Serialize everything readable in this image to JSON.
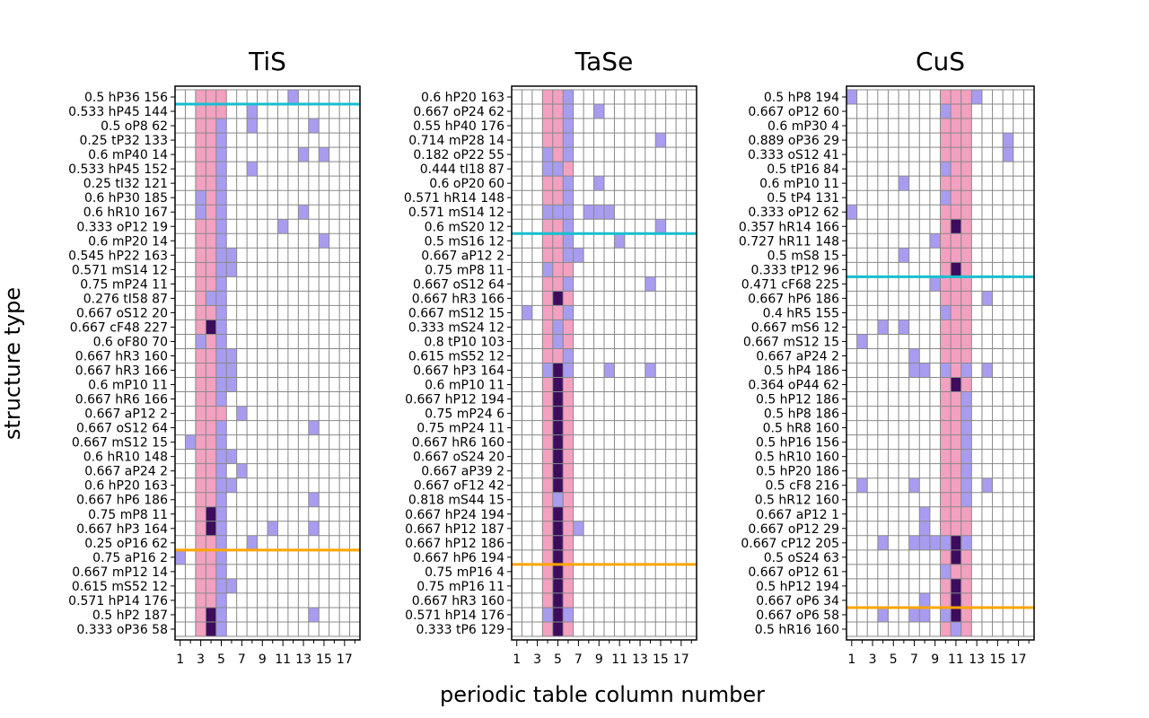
{
  "figure": {
    "xlabel": "periodic table column number",
    "ylabel": "structure type",
    "colors": {
      "background": "#ffffff",
      "highlight_column": "#f4a0c0",
      "single": "#a89cf0",
      "double": "#3d0c5e",
      "grid": "#888888",
      "cyan_line": "#17becf",
      "orange_line": "#ffa500"
    }
  },
  "chart_data": [
    {
      "type": "heatmap",
      "title": "TiS",
      "x_columns": 18,
      "x_tick_labels": [
        "1",
        "3",
        "5",
        "7",
        "9",
        "11",
        "13",
        "15",
        "17"
      ],
      "highlight_columns": [
        3,
        4,
        5
      ],
      "rows": [
        "0.5 hP36 156",
        "0.533 hP45 144",
        "0.5 oP8 62",
        "0.25 tP32 133",
        "0.6 mP40 14",
        "0.533 hP45 152",
        "0.25 tI32 121",
        "0.6 hP30 185",
        "0.6 hR10 167",
        "0.333 oP12 19",
        "0.6 mP20 14",
        "0.545 hP22 163",
        "0.571 mS14 12",
        "0.75 mP24 11",
        "0.276 tI58 87",
        "0.667 oS12 20",
        "0.667 cF48 227",
        "0.6 oF80 70",
        "0.667 hR3 160",
        "0.667 hR3 166",
        "0.6 mP10 11",
        "0.667 hR6 166",
        "0.667 aP12 2",
        "0.667 oS12 64",
        "0.667 mS12 15",
        "0.6 hR10 148",
        "0.667 aP24 2",
        "0.6 hP20 163",
        "0.667 hP6 186",
        "0.75 mP8 11",
        "0.667 hP3 164",
        "0.25 oP16 62",
        "0.75 aP16 2",
        "0.667 mP12 14",
        "0.615 mS52 12",
        "0.571 hP14 176",
        "0.5 hP2 187",
        "0.333 oP36 58"
      ],
      "cells": [
        [
          1,
          12,
          1
        ],
        [
          2,
          8,
          1
        ],
        [
          3,
          5,
          1
        ],
        [
          3,
          8,
          1
        ],
        [
          3,
          14,
          1
        ],
        [
          4,
          5,
          1
        ],
        [
          5,
          5,
          1
        ],
        [
          5,
          13,
          1
        ],
        [
          5,
          15,
          1
        ],
        [
          6,
          5,
          1
        ],
        [
          6,
          8,
          1
        ],
        [
          7,
          5,
          1
        ],
        [
          8,
          3,
          1
        ],
        [
          8,
          5,
          1
        ],
        [
          9,
          3,
          1
        ],
        [
          9,
          5,
          1
        ],
        [
          9,
          13,
          1
        ],
        [
          10,
          5,
          1
        ],
        [
          10,
          11,
          1
        ],
        [
          11,
          5,
          1
        ],
        [
          11,
          15,
          1
        ],
        [
          12,
          5,
          1
        ],
        [
          12,
          6,
          1
        ],
        [
          13,
          5,
          1
        ],
        [
          13,
          6,
          1
        ],
        [
          14,
          5,
          1
        ],
        [
          15,
          4,
          1
        ],
        [
          15,
          5,
          1
        ],
        [
          16,
          5,
          1
        ],
        [
          17,
          4,
          2
        ],
        [
          17,
          5,
          1
        ],
        [
          18,
          3,
          1
        ],
        [
          18,
          5,
          1
        ],
        [
          19,
          5,
          1
        ],
        [
          19,
          6,
          1
        ],
        [
          20,
          5,
          1
        ],
        [
          20,
          6,
          1
        ],
        [
          21,
          5,
          1
        ],
        [
          21,
          6,
          1
        ],
        [
          22,
          5,
          1
        ],
        [
          23,
          7,
          1
        ],
        [
          24,
          5,
          1
        ],
        [
          24,
          14,
          1
        ],
        [
          25,
          2,
          1
        ],
        [
          25,
          5,
          1
        ],
        [
          26,
          5,
          1
        ],
        [
          26,
          6,
          1
        ],
        [
          27,
          5,
          1
        ],
        [
          27,
          7,
          1
        ],
        [
          28,
          5,
          1
        ],
        [
          28,
          6,
          1
        ],
        [
          29,
          5,
          1
        ],
        [
          29,
          14,
          1
        ],
        [
          30,
          4,
          2
        ],
        [
          30,
          5,
          1
        ],
        [
          31,
          4,
          2
        ],
        [
          31,
          5,
          1
        ],
        [
          31,
          10,
          1
        ],
        [
          31,
          14,
          1
        ],
        [
          32,
          5,
          1
        ],
        [
          32,
          8,
          1
        ],
        [
          33,
          1,
          1
        ],
        [
          33,
          5,
          1
        ],
        [
          34,
          5,
          1
        ],
        [
          35,
          5,
          1
        ],
        [
          35,
          6,
          1
        ],
        [
          36,
          5,
          1
        ],
        [
          37,
          4,
          2
        ],
        [
          37,
          5,
          1
        ],
        [
          37,
          14,
          1
        ],
        [
          38,
          4,
          2
        ],
        [
          38,
          5,
          1
        ]
      ],
      "cyan_line_after_row": 1,
      "orange_line_after_row": 32
    },
    {
      "type": "heatmap",
      "title": "TaSe",
      "x_columns": 18,
      "x_tick_labels": [
        "1",
        "3",
        "5",
        "7",
        "9",
        "11",
        "13",
        "15",
        "17"
      ],
      "highlight_columns": [
        4,
        5,
        6
      ],
      "rows": [
        "0.6 hP20 163",
        "0.667 oP24 62",
        "0.55 hP40 176",
        "0.714 mP28 14",
        "0.182 oP22 55",
        "0.444 tI18 87",
        "0.6 oP20 60",
        "0.571 hR14 148",
        "0.571 mS14 12",
        "0.6 mS20 12",
        "0.5 mS16 12",
        "0.667 aP12 2",
        "0.75 mP8 11",
        "0.667 oS12 64",
        "0.667 hR3 166",
        "0.667 mS12 15",
        "0.333 mS24 12",
        "0.8 tP10 103",
        "0.615 mS52 12",
        "0.667 hP3 164",
        "0.6 mP10 11",
        "0.667 hP12 194",
        "0.75 mP24 6",
        "0.75 mP24 11",
        "0.667 hR6 160",
        "0.667 oS24 20",
        "0.667 aP39 2",
        "0.667 oF12 42",
        "0.818 mS44 15",
        "0.667 hP24 194",
        "0.667 hP12 187",
        "0.667 hP12 186",
        "0.667 hP6 194",
        "0.75 mP16 4",
        "0.75 mP16 11",
        "0.667 hR3 160",
        "0.571 hP14 176",
        "0.333 tP6 129"
      ],
      "cells": [
        [
          1,
          6,
          1
        ],
        [
          2,
          6,
          1
        ],
        [
          2,
          9,
          1
        ],
        [
          3,
          6,
          1
        ],
        [
          4,
          6,
          1
        ],
        [
          4,
          15,
          1
        ],
        [
          5,
          4,
          1
        ],
        [
          5,
          6,
          1
        ],
        [
          6,
          4,
          1
        ],
        [
          6,
          5,
          1
        ],
        [
          7,
          6,
          1
        ],
        [
          7,
          9,
          1
        ],
        [
          8,
          6,
          1
        ],
        [
          9,
          4,
          1
        ],
        [
          9,
          5,
          1
        ],
        [
          9,
          6,
          1
        ],
        [
          9,
          8,
          1
        ],
        [
          9,
          9,
          1
        ],
        [
          9,
          10,
          1
        ],
        [
          10,
          6,
          1
        ],
        [
          10,
          15,
          1
        ],
        [
          11,
          6,
          1
        ],
        [
          11,
          11,
          1
        ],
        [
          12,
          6,
          1
        ],
        [
          12,
          7,
          1
        ],
        [
          13,
          4,
          1
        ],
        [
          14,
          6,
          1
        ],
        [
          14,
          14,
          1
        ],
        [
          15,
          5,
          2
        ],
        [
          16,
          2,
          1
        ],
        [
          16,
          6,
          1
        ],
        [
          17,
          5,
          1
        ],
        [
          18,
          5,
          1
        ],
        [
          19,
          6,
          1
        ],
        [
          20,
          4,
          1
        ],
        [
          20,
          5,
          2
        ],
        [
          20,
          6,
          1
        ],
        [
          20,
          10,
          1
        ],
        [
          20,
          14,
          1
        ],
        [
          21,
          5,
          2
        ],
        [
          22,
          5,
          2
        ],
        [
          23,
          5,
          2
        ],
        [
          24,
          5,
          2
        ],
        [
          25,
          5,
          2
        ],
        [
          26,
          5,
          2
        ],
        [
          27,
          5,
          2
        ],
        [
          28,
          5,
          2
        ],
        [
          29,
          5,
          1
        ],
        [
          30,
          5,
          2
        ],
        [
          31,
          5,
          2
        ],
        [
          31,
          7,
          1
        ],
        [
          32,
          5,
          2
        ],
        [
          33,
          5,
          2
        ],
        [
          34,
          5,
          2
        ],
        [
          35,
          5,
          2
        ],
        [
          36,
          5,
          2
        ],
        [
          37,
          4,
          1
        ],
        [
          37,
          5,
          2
        ],
        [
          37,
          6,
          1
        ],
        [
          38,
          5,
          2
        ]
      ],
      "cyan_line_after_row": 10,
      "orange_line_after_row": 33
    },
    {
      "type": "heatmap",
      "title": "CuS",
      "x_columns": 18,
      "x_tick_labels": [
        "1",
        "3",
        "5",
        "7",
        "9",
        "11",
        "13",
        "15",
        "17"
      ],
      "highlight_columns": [
        10,
        11,
        12
      ],
      "rows": [
        "0.5 hP8 194",
        "0.667 oP12 60",
        "0.6 mP30 4",
        "0.889 oP36 29",
        "0.333 oS12 41",
        "0.5 tP16 84",
        "0.6 mP10 11",
        "0.5 tP4 131",
        "0.333 oP12 62",
        "0.357 hR14 166",
        "0.727 hR11 148",
        "0.5 mS8 15",
        "0.333 tP12 96",
        "0.471 cF68 225",
        "0.667 hP6 186",
        "0.4 hR5 155",
        "0.667 mS6 12",
        "0.667 mS12 15",
        "0.667 aP24 2",
        "0.5 hP4 186",
        "0.364 oP44 62",
        "0.5 hP12 186",
        "0.5 hP8 186",
        "0.5 hR8 160",
        "0.5 hP16 156",
        "0.5 hR10 160",
        "0.5 hP20 186",
        "0.5 cF8 216",
        "0.5 hR12 160",
        "0.667 aP12 1",
        "0.667 oP12 29",
        "0.667 cP12 205",
        "0.5 oS24 63",
        "0.667 oP12 61",
        "0.5 hP12 194",
        "0.667 oP6 34",
        "0.667 oP6 58",
        "0.5 hR16 160"
      ],
      "cells": [
        [
          1,
          1,
          1
        ],
        [
          1,
          13,
          1
        ],
        [
          2,
          10,
          1
        ],
        [
          4,
          16,
          1
        ],
        [
          5,
          16,
          1
        ],
        [
          6,
          10,
          1
        ],
        [
          7,
          6,
          1
        ],
        [
          8,
          10,
          1
        ],
        [
          9,
          1,
          1
        ],
        [
          10,
          11,
          2
        ],
        [
          11,
          9,
          1
        ],
        [
          12,
          6,
          1
        ],
        [
          13,
          11,
          2
        ],
        [
          14,
          9,
          1
        ],
        [
          15,
          14,
          1
        ],
        [
          16,
          10,
          1
        ],
        [
          17,
          4,
          1
        ],
        [
          17,
          6,
          1
        ],
        [
          18,
          2,
          1
        ],
        [
          19,
          7,
          1
        ],
        [
          20,
          7,
          1
        ],
        [
          20,
          8,
          1
        ],
        [
          20,
          10,
          1
        ],
        [
          20,
          12,
          1
        ],
        [
          20,
          14,
          1
        ],
        [
          21,
          11,
          2
        ],
        [
          22,
          12,
          1
        ],
        [
          23,
          12,
          1
        ],
        [
          24,
          12,
          1
        ],
        [
          25,
          12,
          1
        ],
        [
          26,
          12,
          1
        ],
        [
          27,
          12,
          1
        ],
        [
          28,
          2,
          1
        ],
        [
          28,
          7,
          1
        ],
        [
          28,
          12,
          1
        ],
        [
          28,
          14,
          1
        ],
        [
          29,
          12,
          1
        ],
        [
          30,
          8,
          1
        ],
        [
          31,
          8,
          1
        ],
        [
          32,
          4,
          1
        ],
        [
          32,
          7,
          1
        ],
        [
          32,
          8,
          1
        ],
        [
          32,
          9,
          1
        ],
        [
          32,
          10,
          1
        ],
        [
          32,
          11,
          2
        ],
        [
          32,
          12,
          1
        ],
        [
          33,
          11,
          2
        ],
        [
          34,
          10,
          1
        ],
        [
          35,
          11,
          2
        ],
        [
          36,
          8,
          1
        ],
        [
          36,
          11,
          2
        ],
        [
          37,
          4,
          1
        ],
        [
          37,
          7,
          1
        ],
        [
          37,
          8,
          1
        ],
        [
          37,
          10,
          1
        ],
        [
          37,
          11,
          2
        ],
        [
          38,
          11,
          1
        ]
      ],
      "cyan_line_after_row": 13,
      "orange_line_after_row": 36
    }
  ]
}
